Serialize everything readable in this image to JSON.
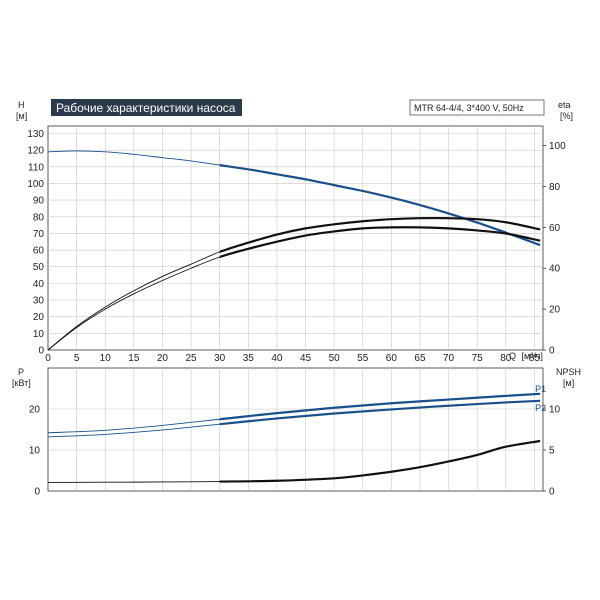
{
  "header": {
    "title": "Рабочие характеристики насоса",
    "model": "MTR 64-4/4, 3*400 V, 50Hz"
  },
  "colors": {
    "title_bg": "#2b3a4a",
    "head_curve": "#1a4f8a",
    "efficiency_curve": "#111111",
    "power_curve": "#1a4f8a",
    "npsh_curve": "#111111",
    "grid": "#c8c8c8"
  },
  "axes": {
    "h_label": "H",
    "h_unit": "[м]",
    "eta_label": "eta",
    "eta_unit": "[%]",
    "q_label": "Q",
    "q_unit": "[м³/ч]",
    "p_label": "P",
    "p_unit": "[кВт]",
    "npsh_label": "NPSH",
    "npsh_unit": "[м]"
  },
  "chart_data": [
    {
      "type": "line",
      "panel": "head-efficiency",
      "x_range": [
        0,
        86
      ],
      "x_ticks": [
        0,
        5,
        10,
        15,
        20,
        25,
        30,
        35,
        40,
        45,
        50,
        55,
        60,
        65,
        70,
        75,
        80,
        85
      ],
      "ylabel": "H [м]",
      "y_range": [
        0,
        135
      ],
      "y_ticks": [
        0,
        10,
        20,
        30,
        40,
        50,
        60,
        70,
        80,
        90,
        100,
        110,
        120,
        130
      ],
      "y2label": "eta [%]",
      "y2_range": [
        0,
        110
      ],
      "y2_ticks": [
        0,
        20,
        40,
        60,
        80,
        100
      ],
      "grid": true,
      "series": [
        {
          "axis": "H",
          "x": [
            0,
            5,
            10,
            15,
            20,
            25,
            30,
            35,
            40,
            45,
            50,
            55,
            60,
            65,
            70,
            75,
            80,
            86
          ],
          "values": [
            119,
            119.5,
            119,
            117.5,
            115.5,
            113.5,
            111,
            108.5,
            105.5,
            102.5,
            99,
            95.5,
            91.5,
            87,
            82,
            76.5,
            70.5,
            63
          ]
        },
        {
          "axis": "eta",
          "x": [
            0,
            5,
            10,
            15,
            20,
            25,
            30,
            35,
            40,
            45,
            50,
            55,
            60,
            65,
            70,
            75,
            80,
            86
          ],
          "values": [
            0,
            11.5,
            21,
            29,
            36,
            42,
            48,
            52.5,
            56.5,
            59.5,
            61.5,
            63,
            64,
            64.5,
            64.5,
            64,
            62.5,
            59
          ]
        },
        {
          "axis": "eta",
          "x": [
            0,
            5,
            10,
            15,
            20,
            25,
            30,
            35,
            40,
            45,
            50,
            55,
            60,
            65,
            70,
            75,
            80,
            86
          ],
          "values": [
            0,
            11,
            20,
            27.5,
            34,
            40,
            45.5,
            49.5,
            53,
            56,
            58,
            59.5,
            60,
            60,
            59.5,
            58.5,
            57,
            53.5
          ]
        }
      ]
    },
    {
      "type": "line",
      "panel": "power-npsh",
      "x_range": [
        0,
        86
      ],
      "ylabel": "P [кВт]",
      "y_range": [
        0,
        26
      ],
      "y_ticks": [
        0,
        10,
        20
      ],
      "y2label": "NPSH [м]",
      "y2_range": [
        0,
        13
      ],
      "y2_ticks": [
        0,
        5,
        10
      ],
      "grid": true,
      "series": [
        {
          "name": "P1",
          "axis": "P",
          "x": [
            0,
            10,
            20,
            30,
            40,
            50,
            60,
            70,
            80,
            86
          ],
          "values": [
            14.2,
            14.8,
            16,
            17.5,
            19,
            20.3,
            21.4,
            22.3,
            23.2,
            23.7
          ]
        },
        {
          "name": "P2",
          "axis": "P",
          "x": [
            0,
            10,
            20,
            30,
            40,
            50,
            60,
            70,
            80,
            86
          ],
          "values": [
            13.2,
            13.8,
            14.9,
            16.3,
            17.7,
            18.9,
            19.9,
            20.8,
            21.6,
            22
          ]
        },
        {
          "axis": "NPSH",
          "x": [
            0,
            10,
            20,
            30,
            40,
            50,
            55,
            60,
            65,
            70,
            75,
            80,
            86
          ],
          "values": [
            1.05,
            1.07,
            1.1,
            1.15,
            1.25,
            1.55,
            1.9,
            2.35,
            2.9,
            3.6,
            4.4,
            5.4,
            6.1
          ]
        }
      ]
    }
  ]
}
